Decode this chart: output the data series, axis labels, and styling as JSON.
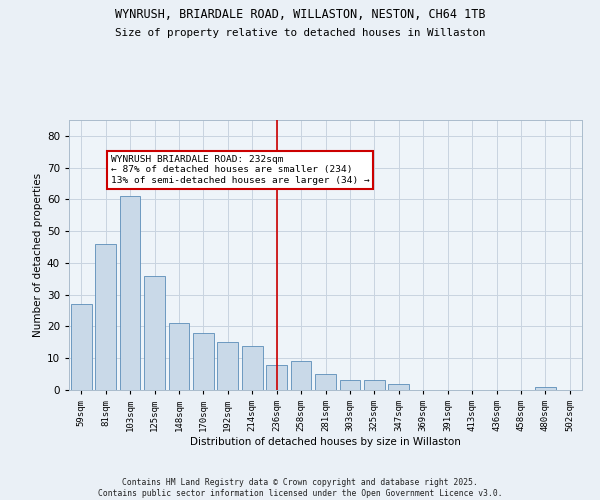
{
  "title1": "WYNRUSH, BRIARDALE ROAD, WILLASTON, NESTON, CH64 1TB",
  "title2": "Size of property relative to detached houses in Willaston",
  "xlabel": "Distribution of detached houses by size in Willaston",
  "ylabel": "Number of detached properties",
  "categories": [
    "59sqm",
    "81sqm",
    "103sqm",
    "125sqm",
    "148sqm",
    "170sqm",
    "192sqm",
    "214sqm",
    "236sqm",
    "258sqm",
    "281sqm",
    "303sqm",
    "325sqm",
    "347sqm",
    "369sqm",
    "391sqm",
    "413sqm",
    "436sqm",
    "458sqm",
    "480sqm",
    "502sqm"
  ],
  "values": [
    27,
    46,
    61,
    36,
    21,
    18,
    15,
    14,
    8,
    9,
    5,
    3,
    3,
    2,
    0,
    0,
    0,
    0,
    0,
    1,
    0
  ],
  "bar_color": "#c9d9e8",
  "bar_edge_color": "#5b8db8",
  "ylim": [
    0,
    85
  ],
  "yticks": [
    0,
    10,
    20,
    30,
    40,
    50,
    60,
    70,
    80
  ],
  "vline_x": 8,
  "vline_color": "#cc0000",
  "annotation_text": "WYNRUSH BRIARDALE ROAD: 232sqm\n← 87% of detached houses are smaller (234)\n13% of semi-detached houses are larger (34) →",
  "annotation_box_color": "#ffffff",
  "annotation_box_edge": "#cc0000",
  "footer": "Contains HM Land Registry data © Crown copyright and database right 2025.\nContains public sector information licensed under the Open Government Licence v3.0.",
  "bg_color": "#eaf0f6",
  "plot_bg": "#eef4f9",
  "grid_color": "#c8d4e0"
}
